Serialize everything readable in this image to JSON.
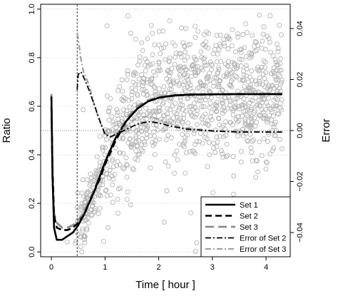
{
  "chart_data": {
    "type": "line",
    "xlabel": "Time [ hour ]",
    "ylabel": "Ratio",
    "y2label": "Error",
    "xlim": [
      -0.2,
      4.45
    ],
    "ylim": [
      -0.02,
      1.02
    ],
    "y2lim": [
      -0.0495,
      0.0495
    ],
    "xticks": [
      0,
      1,
      2,
      3,
      4
    ],
    "yticks": [
      0.0,
      0.2,
      0.4,
      0.6,
      0.8,
      1.0
    ],
    "y2ticks": [
      -0.04,
      -0.02,
      0.0,
      0.02,
      0.04
    ],
    "xtick_labels": [
      "0",
      "1",
      "2",
      "3",
      "4"
    ],
    "ytick_labels": [
      "0.0",
      "0.2",
      "0.4",
      "0.6",
      "0.8",
      "1.0"
    ],
    "y2tick_labels": [
      "−0.04",
      "−0.02",
      "0.00",
      "0.02",
      "0.04"
    ],
    "grid": "horizontal dotted lines at left-axis ticks",
    "vertical_reference_line_x": 0.48,
    "horizontal_reference_line_y2": 0.0,
    "legend_position": "bottom-right",
    "series": [
      {
        "name": "Set 1",
        "axis": "left",
        "style": "solid",
        "color": "#000000",
        "x": [
          0,
          0.02,
          0.05,
          0.1,
          0.2,
          0.3,
          0.4,
          0.5,
          0.6,
          0.7,
          0.8,
          0.9,
          1.0,
          1.1,
          1.2,
          1.4,
          1.6,
          1.8,
          2.0,
          2.3,
          2.6,
          3.0,
          3.5,
          4.0,
          4.3
        ],
        "y": [
          0.64,
          0.32,
          0.1,
          0.05,
          0.05,
          0.065,
          0.08,
          0.11,
          0.15,
          0.2,
          0.25,
          0.31,
          0.37,
          0.42,
          0.47,
          0.54,
          0.59,
          0.62,
          0.635,
          0.645,
          0.648,
          0.649,
          0.65,
          0.65,
          0.65
        ]
      },
      {
        "name": "Set 2",
        "axis": "left",
        "style": "dashed",
        "color": "#000000",
        "x": [
          0,
          0.02,
          0.05,
          0.1,
          0.2,
          0.3,
          0.4,
          0.5,
          0.6,
          0.7,
          0.8,
          0.9,
          1.0,
          1.2,
          1.4,
          1.6,
          1.8,
          2.0,
          2.3,
          2.6,
          3.0,
          3.5,
          4.0,
          4.3
        ],
        "y": [
          0.6,
          0.35,
          0.15,
          0.1,
          0.09,
          0.09,
          0.1,
          0.12,
          0.15,
          0.2,
          0.25,
          0.3,
          0.36,
          0.46,
          0.54,
          0.59,
          0.62,
          0.635,
          0.644,
          0.647,
          0.649,
          0.65,
          0.65,
          0.65
        ]
      },
      {
        "name": "Set 3",
        "axis": "left",
        "style": "long-dashed",
        "color": "#8c8c8c",
        "x": [
          0,
          0.02,
          0.05,
          0.1,
          0.2,
          0.3,
          0.4,
          0.5,
          0.6,
          0.7,
          0.8,
          0.9,
          1.0,
          1.2,
          1.4,
          1.6,
          1.8,
          2.0,
          2.3,
          2.6,
          3.0,
          3.5,
          4.0,
          4.3
        ],
        "y": [
          0.65,
          0.3,
          0.16,
          0.12,
          0.1,
          0.1,
          0.11,
          0.13,
          0.16,
          0.21,
          0.26,
          0.31,
          0.37,
          0.47,
          0.55,
          0.6,
          0.625,
          0.638,
          0.645,
          0.648,
          0.65,
          0.65,
          0.65,
          0.65
        ]
      },
      {
        "name": "Error of Set 2",
        "axis": "right",
        "style": "dot-dash",
        "color": "#000000",
        "x": [
          0.48,
          0.5,
          0.55,
          0.6,
          0.7,
          0.8,
          0.9,
          1.0,
          1.1,
          1.2,
          1.4,
          1.6,
          1.8,
          2.0,
          2.2,
          2.5,
          3.0,
          3.5,
          4.0,
          4.3
        ],
        "y": [
          0.016,
          0.022,
          0.023,
          0.021,
          0.016,
          0.01,
          0.004,
          -0.0015,
          -0.0025,
          -0.0015,
          0.0005,
          0.0025,
          0.0035,
          0.003,
          0.0018,
          0.0006,
          -0.0002,
          -0.0006,
          -0.0006,
          -0.0006
        ]
      },
      {
        "name": "Error of Set 3",
        "axis": "right",
        "style": "dot-dash",
        "color": "#a0a0a0",
        "x": [
          0.48,
          0.5,
          0.55,
          0.6,
          0.7,
          0.8,
          0.9,
          1.0,
          1.1,
          1.2,
          1.4,
          1.6,
          1.8,
          2.0,
          2.2,
          2.5,
          3.0,
          3.5,
          4.0,
          4.3
        ],
        "y": [
          0.038,
          0.036,
          0.028,
          0.023,
          0.018,
          0.01,
          0.0035,
          -0.001,
          -0.0025,
          -0.0015,
          0.002,
          0.005,
          0.0055,
          0.0045,
          0.0025,
          0.001,
          0.0,
          -0.0004,
          -0.0006,
          -0.0006
        ]
      }
    ],
    "scatter": {
      "description": "observed ratio points (gray open circles)",
      "color": "#b4b4b4",
      "count": 1100,
      "x_range": [
        0,
        4.3
      ],
      "y_range": [
        0,
        1
      ],
      "approx_mean_curve": "Set 1"
    }
  }
}
